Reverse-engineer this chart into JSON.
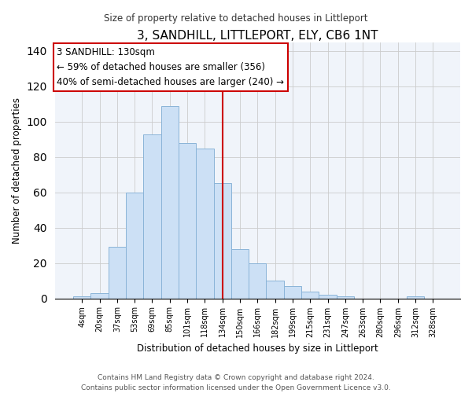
{
  "title": "3, SANDHILL, LITTLEPORT, ELY, CB6 1NT",
  "subtitle": "Size of property relative to detached houses in Littleport",
  "xlabel": "Distribution of detached houses by size in Littleport",
  "ylabel": "Number of detached properties",
  "bar_labels": [
    "4sqm",
    "20sqm",
    "37sqm",
    "53sqm",
    "69sqm",
    "85sqm",
    "101sqm",
    "118sqm",
    "134sqm",
    "150sqm",
    "166sqm",
    "182sqm",
    "199sqm",
    "215sqm",
    "231sqm",
    "247sqm",
    "263sqm",
    "280sqm",
    "296sqm",
    "312sqm",
    "328sqm"
  ],
  "bar_values": [
    1,
    3,
    29,
    60,
    93,
    109,
    88,
    85,
    65,
    28,
    20,
    10,
    7,
    4,
    2,
    1,
    0,
    0,
    0,
    1,
    0
  ],
  "bar_color": "#cce0f5",
  "bar_edge_color": "#8ab4d8",
  "vline_index": 8,
  "vline_color": "#cc0000",
  "annotation_title": "3 SANDHILL: 130sqm",
  "annotation_line1": "← 59% of detached houses are smaller (356)",
  "annotation_line2": "40% of semi-detached houses are larger (240) →",
  "annotation_box_color": "#ffffff",
  "annotation_box_edge": "#cc0000",
  "ylim": [
    0,
    145
  ],
  "yticks": [
    0,
    20,
    40,
    60,
    80,
    100,
    120,
    140
  ],
  "bg_color": "#f0f4fa",
  "footer1": "Contains HM Land Registry data © Crown copyright and database right 2024.",
  "footer2": "Contains public sector information licensed under the Open Government Licence v3.0."
}
